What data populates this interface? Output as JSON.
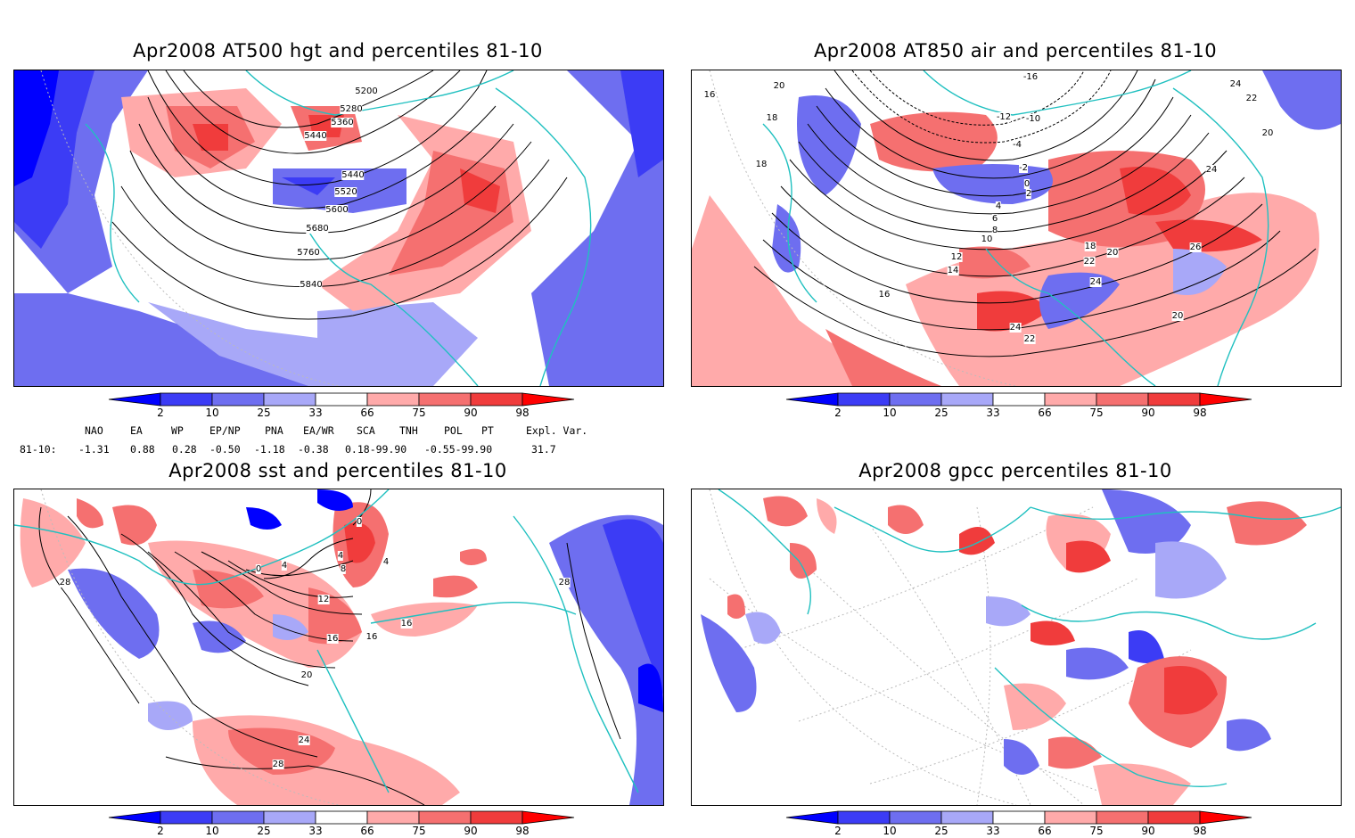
{
  "panels": [
    {
      "title": "Apr2008 AT500 hgt and percentiles 81-10",
      "contour_labels": [
        "5200",
        "5280",
        "5360",
        "5440",
        "5440",
        "5520",
        "5600",
        "5680",
        "5760",
        "5840"
      ]
    },
    {
      "title": "Apr2008 AT850 air and percentiles 81-10",
      "contour_labels": [
        "-16",
        "-12",
        "-10",
        "-4",
        "-2",
        "0",
        "2",
        "4",
        "6",
        "8",
        "10",
        "12",
        "14",
        "16",
        "16",
        "18",
        "18",
        "18",
        "20",
        "20",
        "20",
        "20",
        "22",
        "22",
        "22",
        "24",
        "24",
        "24",
        "24",
        "26"
      ]
    },
    {
      "title": "Apr2008 sst and percentiles 81-10",
      "contour_labels": [
        "0",
        "0",
        "4",
        "4",
        "4",
        "8",
        "12",
        "16",
        "16",
        "16",
        "20",
        "24",
        "28",
        "28",
        "28"
      ]
    },
    {
      "title": "Apr2008 gpcc percentiles 81-10",
      "contour_labels": []
    }
  ],
  "colorbar": {
    "ticks": [
      "2",
      "10",
      "25",
      "33",
      "66",
      "75",
      "90",
      "98"
    ],
    "colors": {
      "below_2": "#0000ff",
      "2_10": "#3c3cf5",
      "10_25": "#6e6ef0",
      "25_33": "#a8a8f8",
      "33_66": "#ffffff",
      "66_75": "#ffaaaa",
      "75_90": "#f57070",
      "90_98": "#f03c3c",
      "above_98": "#ff0000"
    }
  },
  "indices": {
    "headers": [
      "NAO",
      "EA",
      "WP",
      "EP/NP",
      "PNA",
      "EA/WR",
      "SCA",
      "TNH",
      "POL",
      "PT",
      "Expl. Var."
    ],
    "row_label": "81-10:",
    "values": [
      "-1.31",
      "0.88",
      "0.28",
      "-0.50",
      "-1.18",
      "-0.38",
      "0.18-99.90",
      "-0.55-99.90",
      "31.7"
    ]
  },
  "colors": {
    "coast": "#20c0c0",
    "contour": "#000000",
    "grid": "#bbbbbb"
  }
}
